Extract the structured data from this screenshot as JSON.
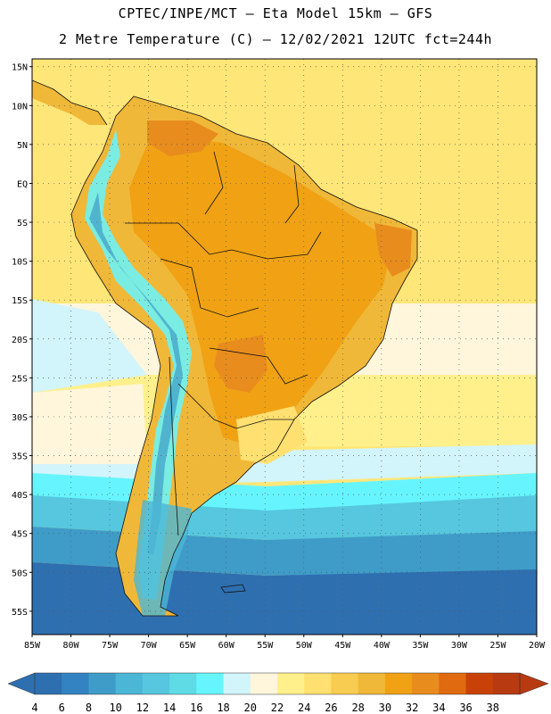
{
  "title": {
    "line1": "CPTEC/INPE/MCT –  Eta Model 15km – GFS",
    "line2": "2 Metre Temperature (C) – 12/02/2021 12UTC fct=244h"
  },
  "map": {
    "lon_range": [
      -85,
      -20
    ],
    "lat_range": [
      -58,
      16
    ],
    "lat_labels": [
      "15N",
      "10N",
      "5N",
      "EQ",
      "5S",
      "10S",
      "15S",
      "20S",
      "25S",
      "30S",
      "35S",
      "40S",
      "45S",
      "50S",
      "55S"
    ],
    "lon_labels": [
      "85W",
      "80W",
      "75W",
      "70W",
      "65W",
      "60W",
      "55W",
      "50W",
      "45W",
      "40W",
      "35W",
      "30W",
      "25W",
      "20W"
    ]
  },
  "colorbar": {
    "labels": [
      "4",
      "6",
      "8",
      "10",
      "12",
      "14",
      "16",
      "18",
      "20",
      "22",
      "24",
      "26",
      "28",
      "30",
      "32",
      "34",
      "36",
      "38"
    ],
    "colors": [
      "#2e6fb0",
      "#3383c2",
      "#3f9cc8",
      "#4cb6d6",
      "#56c7de",
      "#5fdbe6",
      "#66f5ff",
      "#d2f4fb",
      "#fff6dc",
      "#fff08c",
      "#ffe070",
      "#f7cc50",
      "#f0b838",
      "#f0a214",
      "#e88c1e",
      "#e06a10",
      "#c84208",
      "#b83a10"
    ]
  }
}
